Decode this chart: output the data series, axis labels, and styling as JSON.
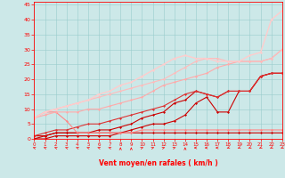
{
  "xlabel": "Vent moyen/en rafales ( km/h )",
  "xlim": [
    0,
    23
  ],
  "ylim": [
    0,
    46
  ],
  "yticks": [
    0,
    5,
    10,
    15,
    20,
    25,
    30,
    35,
    40,
    45
  ],
  "xticks": [
    0,
    1,
    2,
    3,
    4,
    5,
    6,
    7,
    8,
    9,
    10,
    11,
    12,
    13,
    14,
    15,
    16,
    17,
    18,
    19,
    20,
    21,
    22,
    23
  ],
  "background_color": "#cce8e8",
  "grid_color": "#99cccc",
  "lines": [
    {
      "x": [
        0,
        1,
        2,
        3,
        4,
        5,
        6,
        7,
        8,
        9,
        10,
        11,
        12,
        13,
        14,
        15,
        16,
        17,
        18,
        19,
        20,
        21,
        22,
        23
      ],
      "y": [
        0,
        0,
        1,
        1,
        1,
        1,
        1,
        1,
        2,
        3,
        4,
        5,
        5,
        6,
        8,
        12,
        14,
        9,
        9,
        16,
        16,
        21,
        22,
        22
      ],
      "color": "#cc0000",
      "lw": 0.8,
      "marker": "D",
      "ms": 1.5
    },
    {
      "x": [
        0,
        1,
        2,
        3,
        4,
        5,
        6,
        7,
        8,
        9,
        10,
        11,
        12,
        13,
        14,
        15,
        16,
        17,
        18,
        19,
        20,
        21,
        22,
        23
      ],
      "y": [
        0,
        1,
        2,
        2,
        2,
        2,
        2,
        2,
        2,
        2,
        2,
        2,
        2,
        2,
        2,
        2,
        2,
        2,
        2,
        2,
        2,
        2,
        2,
        2
      ],
      "color": "#cc0000",
      "lw": 0.8,
      "marker": "D",
      "ms": 1.5
    },
    {
      "x": [
        0,
        1,
        2,
        3,
        4,
        5,
        6,
        7,
        8,
        9,
        10,
        11,
        12,
        13,
        14,
        15,
        16,
        17,
        18,
        19,
        20,
        21,
        22,
        23
      ],
      "y": [
        1,
        1,
        2,
        2,
        2,
        2,
        3,
        3,
        4,
        5,
        7,
        8,
        9,
        12,
        13,
        16,
        15,
        14,
        16,
        16,
        16,
        21,
        22,
        22
      ],
      "color": "#cc0000",
      "lw": 0.8,
      "marker": "D",
      "ms": 1.5
    },
    {
      "x": [
        0,
        1,
        2,
        3,
        4,
        5,
        6,
        7,
        8,
        9,
        10,
        11,
        12,
        13,
        14,
        15,
        16,
        17,
        18,
        19,
        20,
        21,
        22,
        23
      ],
      "y": [
        1,
        2,
        3,
        3,
        4,
        5,
        5,
        6,
        7,
        8,
        9,
        10,
        11,
        13,
        15,
        16,
        15,
        14,
        16,
        16,
        16,
        21,
        22,
        22
      ],
      "color": "#dd3333",
      "lw": 0.8,
      "marker": "D",
      "ms": 1.5
    },
    {
      "x": [
        0,
        1,
        2,
        3,
        4,
        5,
        6,
        7,
        8,
        9,
        10,
        11,
        12,
        13,
        14,
        15,
        16,
        17,
        18,
        19,
        20,
        21,
        22,
        23
      ],
      "y": [
        7,
        9,
        9,
        6,
        2,
        2,
        2,
        2,
        2,
        2,
        3,
        3,
        3,
        3,
        3,
        3,
        3,
        3,
        3,
        3,
        3,
        3,
        3,
        3
      ],
      "color": "#ff8888",
      "lw": 0.8,
      "marker": "D",
      "ms": 1.5
    },
    {
      "x": [
        0,
        1,
        2,
        3,
        4,
        5,
        6,
        7,
        8,
        9,
        10,
        11,
        12,
        13,
        14,
        15,
        16,
        17,
        18,
        19,
        20,
        21,
        22,
        23
      ],
      "y": [
        7,
        8,
        9,
        9,
        9,
        10,
        10,
        11,
        12,
        13,
        14,
        16,
        18,
        19,
        20,
        21,
        22,
        24,
        25,
        26,
        26,
        26,
        27,
        30
      ],
      "color": "#ffaaaa",
      "lw": 0.8,
      "marker": "D",
      "ms": 1.5
    },
    {
      "x": [
        0,
        1,
        2,
        3,
        4,
        5,
        6,
        7,
        8,
        9,
        10,
        11,
        12,
        13,
        14,
        15,
        16,
        17,
        18,
        19,
        20,
        21,
        22,
        23
      ],
      "y": [
        7,
        9,
        10,
        11,
        12,
        13,
        14,
        15,
        16,
        17,
        18,
        19,
        20,
        22,
        24,
        26,
        27,
        27,
        26,
        26,
        26,
        26,
        27,
        30
      ],
      "color": "#ffbbbb",
      "lw": 0.8,
      "marker": "D",
      "ms": 1.5
    },
    {
      "x": [
        0,
        1,
        2,
        3,
        4,
        5,
        6,
        7,
        8,
        9,
        10,
        11,
        12,
        13,
        14,
        15,
        16,
        17,
        18,
        19,
        20,
        21,
        22,
        23
      ],
      "y": [
        7,
        9,
        10,
        11,
        12,
        13,
        15,
        16,
        18,
        19,
        21,
        23,
        25,
        27,
        28,
        27,
        27,
        26,
        26,
        26,
        28,
        29,
        40,
        43
      ],
      "color": "#ffcccc",
      "lw": 1.0,
      "marker": "D",
      "ms": 1.5
    }
  ],
  "wind_arrow_angles": [
    225,
    225,
    225,
    225,
    225,
    225,
    225,
    225,
    180,
    180,
    135,
    135,
    135,
    135,
    180,
    270,
    270,
    270,
    315,
    315,
    315,
    315,
    315,
    315
  ]
}
